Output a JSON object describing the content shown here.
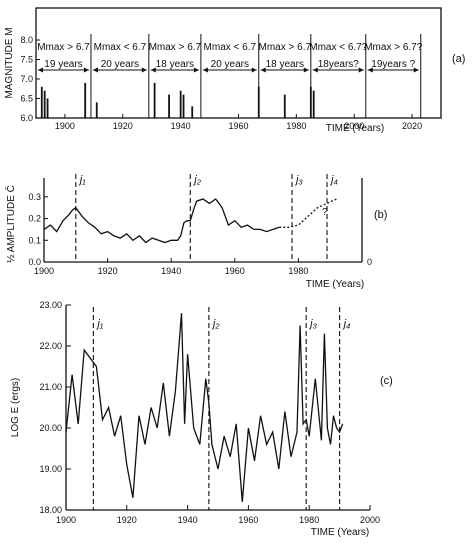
{
  "chart_data": [
    {
      "panel": "a",
      "type": "bar",
      "ylabel": "MAGNITUDE M",
      "xlabel": "TIME (Years)",
      "panel_label": "(a)",
      "xlim": [
        1890,
        2030
      ],
      "ylim": [
        6.0,
        8.0
      ],
      "xticks": [
        1900,
        1920,
        1940,
        1960,
        1980,
        2000,
        2020
      ],
      "yticks": [
        6.0,
        6.5,
        7.0,
        7.5,
        8.0
      ],
      "ytick_labels": [
        "6.0",
        "6.5",
        "7.0",
        "7.5",
        "8.0"
      ],
      "events": [
        {
          "year": 1892,
          "mag": 6.8
        },
        {
          "year": 1893,
          "mag": 6.7
        },
        {
          "year": 1894,
          "mag": 6.5
        },
        {
          "year": 1907,
          "mag": 6.9
        },
        {
          "year": 1911,
          "mag": 6.4
        },
        {
          "year": 1931,
          "mag": 6.9
        },
        {
          "year": 1936,
          "mag": 6.6
        },
        {
          "year": 1940,
          "mag": 6.7
        },
        {
          "year": 1941,
          "mag": 6.6
        },
        {
          "year": 1944,
          "mag": 6.3
        },
        {
          "year": 1967,
          "mag": 6.8
        },
        {
          "year": 1976,
          "mag": 6.6
        },
        {
          "year": 1985,
          "mag": 6.8
        },
        {
          "year": 1986,
          "mag": 6.7
        }
      ],
      "segments": [
        {
          "start": 1890,
          "end": 1909,
          "label": "Mmax > 6.7",
          "sub": "19 years"
        },
        {
          "start": 1909,
          "end": 1929,
          "label": "Mmax < 6.7",
          "sub": "20 years"
        },
        {
          "start": 1929,
          "end": 1947,
          "label": "Mmax > 6.7",
          "sub": "18 years"
        },
        {
          "start": 1947,
          "end": 1967,
          "label": "Mmax < 6.7",
          "sub": "20 years"
        },
        {
          "start": 1967,
          "end": 1985,
          "label": "Mmax > 6.7",
          "sub": "18 years"
        },
        {
          "start": 1985,
          "end": 2004,
          "label": "Mmax < 6.7?",
          "sub": "18years?"
        },
        {
          "start": 2004,
          "end": 2023,
          "label": "Mmax > 6.7?",
          "sub": "19years ?"
        }
      ]
    },
    {
      "panel": "b",
      "type": "line",
      "ylabel": "½ AMPLITUDE C̄",
      "xlabel": "TIME (Years)",
      "panel_label": "(b)",
      "xlim": [
        1900,
        2000
      ],
      "ylim": [
        0,
        0.35
      ],
      "xticks": [
        1900,
        1920,
        1940,
        1960,
        1980
      ],
      "xtick_labels": [
        "1900",
        "1920",
        "1940",
        "1960",
        "1980"
      ],
      "yticks": [
        0,
        0.1,
        0.2,
        0.3
      ],
      "ytick_labels": [
        "0.0",
        "0.1",
        "0.2",
        "0.3"
      ],
      "right_axis_tick_label": "0",
      "markers": [
        {
          "year": 1910,
          "label": "j₁"
        },
        {
          "year": 1946,
          "label": "j₂"
        },
        {
          "year": 1978,
          "label": "j₃"
        },
        {
          "year": 1989,
          "label": "j₄"
        }
      ],
      "series": [
        {
          "style": "solid",
          "x": [
            1900,
            1902,
            1904,
            1906,
            1908,
            1909,
            1910,
            1911,
            1912,
            1914,
            1916,
            1918,
            1920,
            1922,
            1924,
            1926,
            1928,
            1930,
            1932,
            1934,
            1936,
            1938,
            1940,
            1942,
            1943,
            1944,
            1945,
            1946,
            1947,
            1948,
            1950,
            1952,
            1954,
            1956,
            1958,
            1960,
            1962,
            1964,
            1966,
            1968,
            1970,
            1972,
            1974
          ],
          "y": [
            0.15,
            0.17,
            0.14,
            0.19,
            0.22,
            0.24,
            0.25,
            0.23,
            0.21,
            0.18,
            0.16,
            0.13,
            0.14,
            0.12,
            0.11,
            0.13,
            0.1,
            0.12,
            0.09,
            0.11,
            0.1,
            0.09,
            0.1,
            0.1,
            0.12,
            0.18,
            0.19,
            0.19,
            0.24,
            0.28,
            0.29,
            0.27,
            0.29,
            0.25,
            0.17,
            0.19,
            0.16,
            0.17,
            0.15,
            0.15,
            0.14,
            0.15,
            0.16
          ]
        },
        {
          "style": "dotted",
          "x": [
            1974,
            1977,
            1980,
            1983,
            1986,
            1989,
            1992
          ],
          "y": [
            0.16,
            0.16,
            0.17,
            0.21,
            0.25,
            0.27,
            0.29
          ]
        }
      ]
    },
    {
      "panel": "c",
      "type": "line",
      "ylabel": "LOG  E  (ergs)",
      "xlabel": "TIME (Years)",
      "panel_label": "(c)",
      "xlim": [
        1900,
        2000
      ],
      "ylim": [
        18.0,
        23.0
      ],
      "xticks": [
        1900,
        1920,
        1940,
        1960,
        1980,
        2000
      ],
      "yticks": [
        18,
        19,
        20,
        21,
        22,
        23
      ],
      "ytick_labels": [
        "18.00",
        "19.00",
        "20.00",
        "21.00",
        "22.00",
        "23.00"
      ],
      "markers": [
        {
          "year": 1909,
          "label": "j₁"
        },
        {
          "year": 1947,
          "label": "j₂"
        },
        {
          "year": 1979,
          "label": "j₃"
        },
        {
          "year": 1990,
          "label": "j₄"
        }
      ],
      "series": [
        {
          "style": "solid",
          "x": [
            1900,
            1902,
            1904,
            1906,
            1907,
            1908,
            1910,
            1912,
            1914,
            1916,
            1918,
            1920,
            1922,
            1924,
            1926,
            1928,
            1930,
            1932,
            1934,
            1936,
            1938,
            1939,
            1940,
            1942,
            1944,
            1946,
            1947,
            1948,
            1950,
            1952,
            1954,
            1956,
            1958,
            1960,
            1962,
            1964,
            1966,
            1968,
            1970,
            1972,
            1974,
            1976,
            1977,
            1978,
            1979,
            1980,
            1982,
            1984,
            1985,
            1986,
            1987,
            1988,
            1989,
            1990,
            1991
          ],
          "y": [
            19.9,
            21.3,
            20.1,
            21.9,
            21.8,
            21.7,
            21.5,
            20.2,
            20.5,
            19.8,
            20.3,
            19.1,
            18.3,
            20.3,
            19.6,
            20.5,
            20.0,
            21.1,
            19.8,
            20.9,
            22.8,
            20.1,
            21.8,
            20.0,
            19.6,
            21.2,
            20.6,
            19.6,
            19.0,
            19.8,
            19.3,
            20.1,
            18.2,
            20.0,
            19.2,
            20.3,
            19.6,
            19.9,
            19.0,
            20.4,
            19.3,
            19.9,
            22.5,
            20.1,
            20.2,
            19.8,
            21.2,
            19.7,
            22.3,
            20.0,
            19.6,
            20.3,
            20.0,
            19.9,
            20.1
          ]
        }
      ]
    }
  ]
}
